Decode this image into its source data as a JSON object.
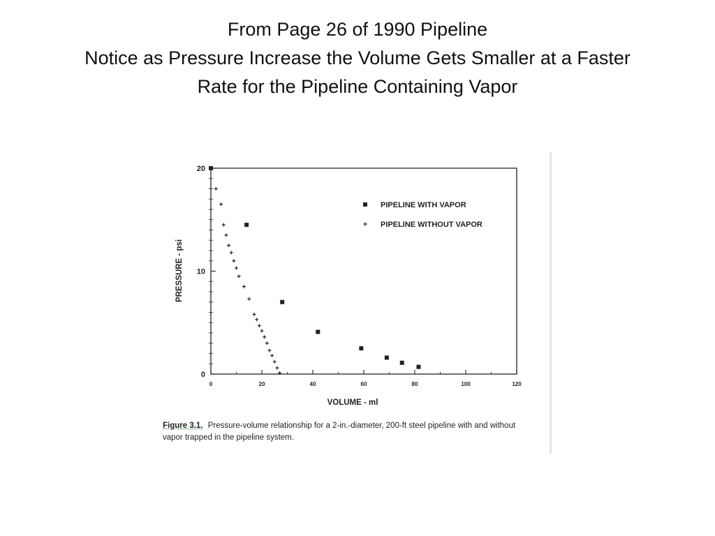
{
  "slide": {
    "title_lines": [
      "From Page 26 of 1990 Pipeline",
      "Notice as Pressure Increase the Volume Gets Smaller at a Faster",
      "Rate for the Pipeline Containing Vapor"
    ]
  },
  "caption": {
    "label": "Figure 3.1.",
    "text": "Pressure-volume relationship for a 2-in.-diameter, 200-ft steel pipeline with and without vapor trapped in the pipeline system."
  },
  "chart_data": {
    "type": "scatter",
    "xlabel": "VOLUME - ml",
    "ylabel": "PRESSURE - psi",
    "xlim": [
      0,
      120
    ],
    "ylim": [
      0,
      20
    ],
    "xticks": [
      "0",
      "20",
      "40",
      "60",
      "80",
      "100",
      "120"
    ],
    "yticks": [
      "0",
      "10",
      "20"
    ],
    "grid": false,
    "legend_position": "top-right",
    "series": [
      {
        "name": "PIPELINE WITH VAPOR",
        "marker": "square",
        "color": "#222222",
        "x": [
          0,
          14,
          28,
          42,
          59,
          69,
          75,
          81.5
        ],
        "y": [
          20,
          14.5,
          7,
          4.1,
          2.5,
          1.6,
          1.1,
          0.7
        ]
      },
      {
        "name": "PIPELINE WITHOUT VAPOR",
        "marker": "plus",
        "color": "#222222",
        "x": [
          2,
          4,
          5,
          6,
          7,
          8,
          9,
          10,
          11,
          13,
          15,
          17,
          18,
          19,
          20,
          21,
          22,
          23,
          24,
          25,
          26,
          27
        ],
        "y": [
          18,
          16.5,
          14.5,
          13.5,
          12.5,
          11.8,
          11,
          10.3,
          9.5,
          8.5,
          7.3,
          5.8,
          5.3,
          4.7,
          4.2,
          3.6,
          3,
          2.3,
          1.8,
          1.2,
          0.6,
          0.1
        ]
      }
    ]
  }
}
